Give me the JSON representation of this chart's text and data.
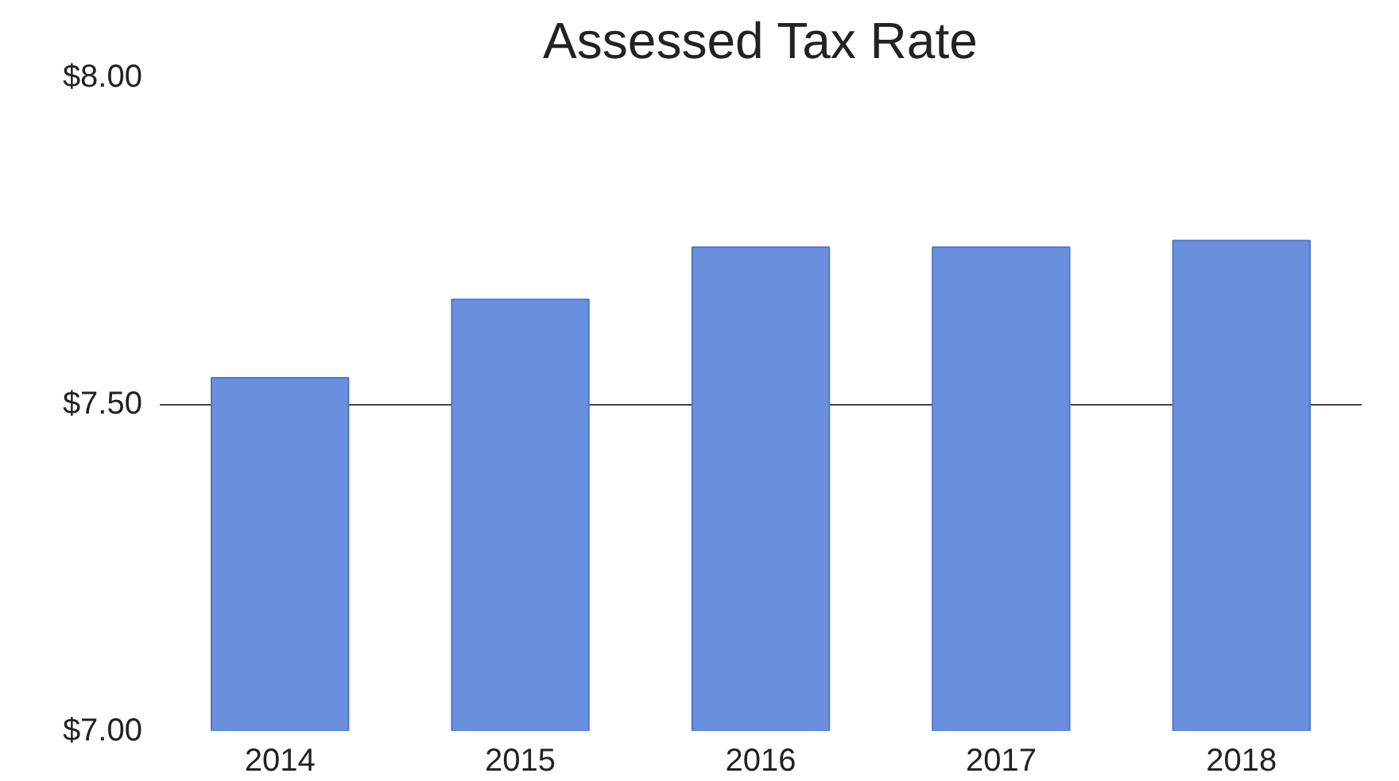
{
  "chart_data": {
    "type": "bar",
    "title": "Assessed Tax Rate",
    "categories": [
      "2014",
      "2015",
      "2016",
      "2017",
      "2018"
    ],
    "values": [
      7.54,
      7.66,
      7.74,
      7.74,
      7.75
    ],
    "color": "#6a8fdd",
    "ylim": [
      7,
      8
    ],
    "yticks": [
      {
        "value": 7,
        "label": "$7.00"
      },
      {
        "value": 7.5,
        "label": "$7.50"
      },
      {
        "value": 8,
        "label": "$8.00"
      }
    ],
    "grid": "y"
  }
}
